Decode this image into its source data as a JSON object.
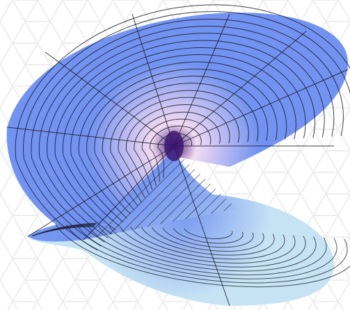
{
  "figure": {
    "subject": "screw-surface-3d-plot",
    "colors": {
      "background": "#ffffff",
      "pattern_line": "#eeeeee",
      "surface_blue": "#6a8df0",
      "surface_light_blue": "#c4e2f4",
      "surface_center_pink": "#f2d8f2",
      "center_dark_purple": "#3a1470",
      "mesh_line": "#1b1b2a"
    }
  }
}
